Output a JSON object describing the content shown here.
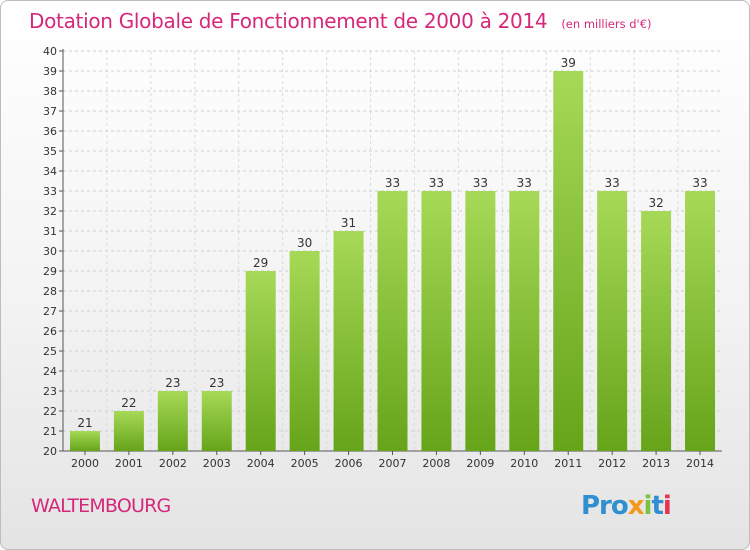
{
  "chart_data": {
    "type": "bar",
    "title": "Dotation Globale de Fonctionnement de 2000 à 2014",
    "unit_note": "(en milliers d'€)",
    "categories": [
      "2000",
      "2001",
      "2002",
      "2003",
      "2004",
      "2005",
      "2006",
      "2007",
      "2008",
      "2009",
      "2010",
      "2011",
      "2012",
      "2013",
      "2014"
    ],
    "values": [
      21,
      22,
      23,
      23,
      29,
      30,
      31,
      33,
      33,
      33,
      33,
      39,
      33,
      32,
      33
    ],
    "ylim": [
      20,
      40
    ],
    "yticks": [
      20,
      21,
      22,
      23,
      24,
      25,
      26,
      27,
      28,
      29,
      30,
      31,
      32,
      33,
      34,
      35,
      36,
      37,
      38,
      39,
      40
    ],
    "xlabel": "",
    "ylabel": "",
    "grid": true,
    "colors": {
      "bar_light": "#a6d957",
      "bar_dark": "#66a41a",
      "title": "#d6287a"
    }
  },
  "footer": {
    "commune": "WALTEMBOURG",
    "logo_parts": [
      "Pro",
      "x",
      "i",
      "t",
      "i"
    ]
  }
}
